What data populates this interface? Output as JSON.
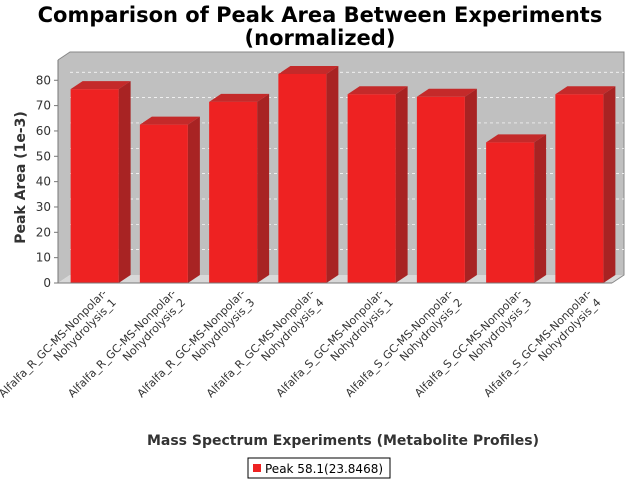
{
  "chart_data": {
    "type": "bar",
    "title": "Comparison of Peak Area Between Experiments (normalized)",
    "title_lines": [
      "Comparison of Peak Area Between Experiments",
      "(normalized)"
    ],
    "xlabel": "Mass Spectrum Experiments (Metabolite Profiles)",
    "ylabel": "Peak Area (1e-3)",
    "ylim": [
      0,
      88
    ],
    "yticks": [
      0,
      10,
      20,
      30,
      40,
      50,
      60,
      70,
      80
    ],
    "grid": true,
    "legend_position": "bottom-center",
    "categories": [
      [
        "Alfalfa_R_GC-MS-Nonpolar-",
        "Nohydrolysis_1"
      ],
      [
        "Alfalfa_R_GC-MS-Nonpolar-",
        "Nohydrolysis_2"
      ],
      [
        "Alfalfa_R_GC-MS-Nonpolar-",
        "Nohydrolysis_3"
      ],
      [
        "Alfalfa_R_GC-MS-Nonpolar-",
        "Nohydrolysis_4"
      ],
      [
        "Alfalfa_S_GC-MS-Nonpolar-",
        "Nohydrolysis_1"
      ],
      [
        "Alfalfa_S_GC-MS-Nonpolar-",
        "Nohydrolysis_2"
      ],
      [
        "Alfalfa_S_GC-MS-Nonpolar-",
        "Nohydrolysis_3"
      ],
      [
        "Alfalfa_S_GC-MS-Nonpolar-",
        "Nohydrolysis_4"
      ]
    ],
    "series": [
      {
        "name": "Peak 58.1(23.8468)",
        "color": "#ee2222",
        "values": [
          76.5,
          62.5,
          71.5,
          82.5,
          74.5,
          73.5,
          55.5,
          74.5
        ]
      }
    ]
  }
}
